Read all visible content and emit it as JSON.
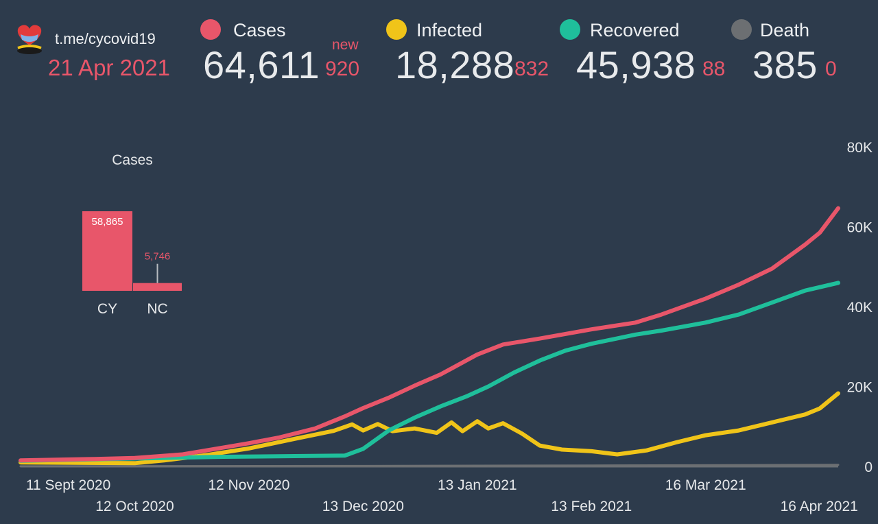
{
  "header": {
    "site": "t.me/cycovid19",
    "date": "21 Apr 2021",
    "new_tag": "new",
    "stats": [
      {
        "label": "Cases",
        "value": "64,611",
        "new": "920",
        "color": "#e8566a"
      },
      {
        "label": "Infected",
        "value": "18,288",
        "new": "832",
        "color": "#f0c419"
      },
      {
        "label": "Recovered",
        "value": "45,938",
        "new": "88",
        "color": "#1fbf9b"
      },
      {
        "label": "Death",
        "value": "385",
        "new": "0",
        "color": "#6c6f72"
      }
    ]
  },
  "inset": {
    "title": "Cases",
    "bars": [
      {
        "label": "CY",
        "value": 58865,
        "value_label": "58,865"
      },
      {
        "label": "NC",
        "value": 5746,
        "value_label": "5,746"
      }
    ],
    "color": "#e8566a"
  },
  "chart_data": {
    "type": "line",
    "x_tick_labels": [
      "11 Sept 2020",
      "12 Oct 2020",
      "12 Nov 2020",
      "13 Dec 2020",
      "13 Jan 2021",
      "13 Feb 2021",
      "16 Mar 2021",
      "16 Apr 2021"
    ],
    "y_tick_labels": [
      "0",
      "20K",
      "40K",
      "60K",
      "80K"
    ],
    "ylim": [
      0,
      80000
    ],
    "xlim": [
      "2020-09-11",
      "2021-04-21"
    ],
    "series": [
      {
        "name": "Cases",
        "color": "#e8566a",
        "points": [
          [
            "2020-09-11",
            1500
          ],
          [
            "2020-10-01",
            1850
          ],
          [
            "2020-10-12",
            2100
          ],
          [
            "2020-10-25",
            3000
          ],
          [
            "2020-11-05",
            4700
          ],
          [
            "2020-11-12",
            5800
          ],
          [
            "2020-11-20",
            7200
          ],
          [
            "2020-11-30",
            9500
          ],
          [
            "2020-12-08",
            12500
          ],
          [
            "2020-12-13",
            14600
          ],
          [
            "2020-12-20",
            17200
          ],
          [
            "2020-12-27",
            20200
          ],
          [
            "2021-01-03",
            23000
          ],
          [
            "2021-01-06",
            24500
          ],
          [
            "2021-01-13",
            28000
          ],
          [
            "2021-01-20",
            30500
          ],
          [
            "2021-01-30",
            32000
          ],
          [
            "2021-02-13",
            34300
          ],
          [
            "2021-02-25",
            36000
          ],
          [
            "2021-03-04",
            38000
          ],
          [
            "2021-03-16",
            42000
          ],
          [
            "2021-03-25",
            45500
          ],
          [
            "2021-04-03",
            49500
          ],
          [
            "2021-04-12",
            55500
          ],
          [
            "2021-04-16",
            58500
          ],
          [
            "2021-04-21",
            64611
          ]
        ]
      },
      {
        "name": "Infected",
        "color": "#f0c419",
        "points": [
          [
            "2020-09-11",
            1000
          ],
          [
            "2020-10-12",
            800
          ],
          [
            "2020-10-20",
            1500
          ],
          [
            "2020-11-01",
            2900
          ],
          [
            "2020-11-12",
            4500
          ],
          [
            "2020-11-25",
            7000
          ],
          [
            "2020-12-05",
            8900
          ],
          [
            "2020-12-10",
            10500
          ],
          [
            "2020-12-13",
            9000
          ],
          [
            "2020-12-17",
            10600
          ],
          [
            "2020-12-21",
            8800
          ],
          [
            "2020-12-27",
            9500
          ],
          [
            "2021-01-02",
            8400
          ],
          [
            "2021-01-06",
            11000
          ],
          [
            "2021-01-09",
            8800
          ],
          [
            "2021-01-13",
            11300
          ],
          [
            "2021-01-16",
            9500
          ],
          [
            "2021-01-20",
            10800
          ],
          [
            "2021-01-25",
            8300
          ],
          [
            "2021-01-30",
            5200
          ],
          [
            "2021-02-05",
            4200
          ],
          [
            "2021-02-13",
            3800
          ],
          [
            "2021-02-20",
            3000
          ],
          [
            "2021-02-28",
            4000
          ],
          [
            "2021-03-08",
            6000
          ],
          [
            "2021-03-16",
            7800
          ],
          [
            "2021-03-25",
            9000
          ],
          [
            "2021-04-03",
            11000
          ],
          [
            "2021-04-12",
            13000
          ],
          [
            "2021-04-16",
            14500
          ],
          [
            "2021-04-21",
            18288
          ]
        ]
      },
      {
        "name": "Recovered",
        "color": "#1fbf9b",
        "points": [
          [
            "2020-09-11",
            1400
          ],
          [
            "2020-11-05",
            2400
          ],
          [
            "2020-12-08",
            2700
          ],
          [
            "2020-12-13",
            4400
          ],
          [
            "2020-12-20",
            9000
          ],
          [
            "2020-12-27",
            12200
          ],
          [
            "2021-01-03",
            15000
          ],
          [
            "2021-01-10",
            17500
          ],
          [
            "2021-01-16",
            20000
          ],
          [
            "2021-01-23",
            23500
          ],
          [
            "2021-01-30",
            26500
          ],
          [
            "2021-02-06",
            29000
          ],
          [
            "2021-02-13",
            30700
          ],
          [
            "2021-02-25",
            33000
          ],
          [
            "2021-03-04",
            34000
          ],
          [
            "2021-03-16",
            36000
          ],
          [
            "2021-03-25",
            38000
          ],
          [
            "2021-04-03",
            41000
          ],
          [
            "2021-04-12",
            44000
          ],
          [
            "2021-04-21",
            45938
          ]
        ]
      },
      {
        "name": "Death",
        "color": "#6c6f72",
        "points": [
          [
            "2020-09-11",
            20
          ],
          [
            "2020-12-13",
            100
          ],
          [
            "2021-02-13",
            220
          ],
          [
            "2021-04-21",
            385
          ]
        ]
      }
    ]
  }
}
